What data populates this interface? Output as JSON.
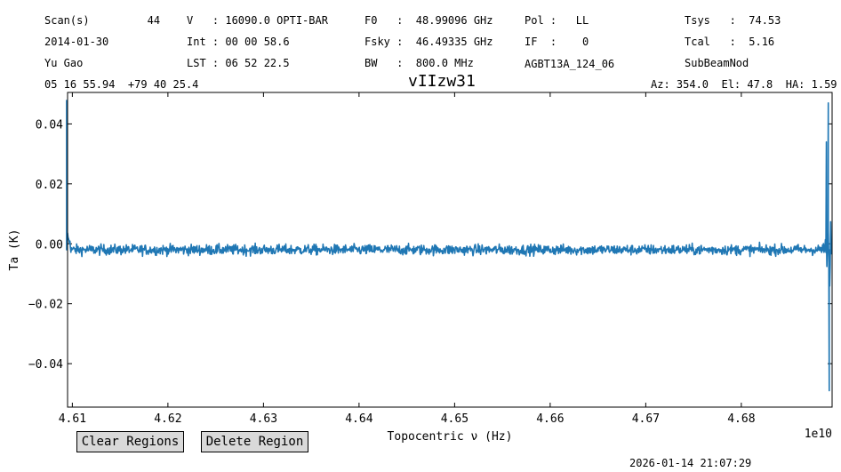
{
  "header": {
    "col1": {
      "scan": "Scan(s)         44",
      "date": "2014-01-30",
      "observer": "Yu Gao",
      "coords": "05 16 55.94  +79 40 25.4"
    },
    "col2": {
      "velocity": "V   : 16090.0 OPTI-BAR",
      "int": "Int : 00 00 58.6",
      "lst": "LST : 06 52 22.5"
    },
    "col3": {
      "f0": "F0   :  48.99096 GHz",
      "fsky": "Fsky :  46.49335 GHz",
      "bw": "BW   :  800.0 MHz"
    },
    "col4": {
      "pol": "Pol :   LL",
      "if": "IF  :    0",
      "project": "AGBT13A_124_06"
    },
    "col5": {
      "tsys": "Tsys   :  74.53",
      "tcal": "Tcal   :  5.16",
      "proc": "SubBeamNod"
    },
    "azel": "Az: 354.0  El: 47.8  HA: 1.59"
  },
  "buttons": {
    "clear": "Clear Regions",
    "delete": "Delete Region"
  },
  "footer": {
    "timestamp": "2026-01-14 21:07:29"
  },
  "colors": {
    "line": "#1f77b4",
    "button_bg": "#d9d9d9"
  },
  "chart_data": {
    "type": "line",
    "title": "vIIzw31",
    "xlabel": "Topocentric ν (Hz)",
    "ylabel": "Ta (K)",
    "x_offset_label": "1e10",
    "xlim": [
      4.6095,
      4.6895
    ],
    "ylim": [
      -0.0545,
      0.0505
    ],
    "xticks": [
      4.61,
      4.62,
      4.63,
      4.64,
      4.65,
      4.66,
      4.67,
      4.68
    ],
    "xtick_labels": [
      "4.61",
      "4.62",
      "4.63",
      "4.64",
      "4.65",
      "4.66",
      "4.67",
      "4.68"
    ],
    "yticks": [
      -0.04,
      -0.02,
      0.0,
      0.02,
      0.04
    ],
    "ytick_labels": [
      "−0.04",
      "−0.02",
      "0.00",
      "0.02",
      "0.04"
    ],
    "grid": false,
    "series": [
      {
        "x_range": [
          4.6095,
          4.6894
        ],
        "points": 1600,
        "baseline": -0.002,
        "noise_rms": 0.0017,
        "edge_spikes": [
          {
            "x": 4.6094,
            "y": 0.048
          },
          {
            "x": 4.6892,
            "y": -0.049
          },
          {
            "x": 4.6891,
            "y": 0.047
          },
          {
            "x": 4.6889,
            "y": 0.034
          }
        ]
      }
    ]
  }
}
